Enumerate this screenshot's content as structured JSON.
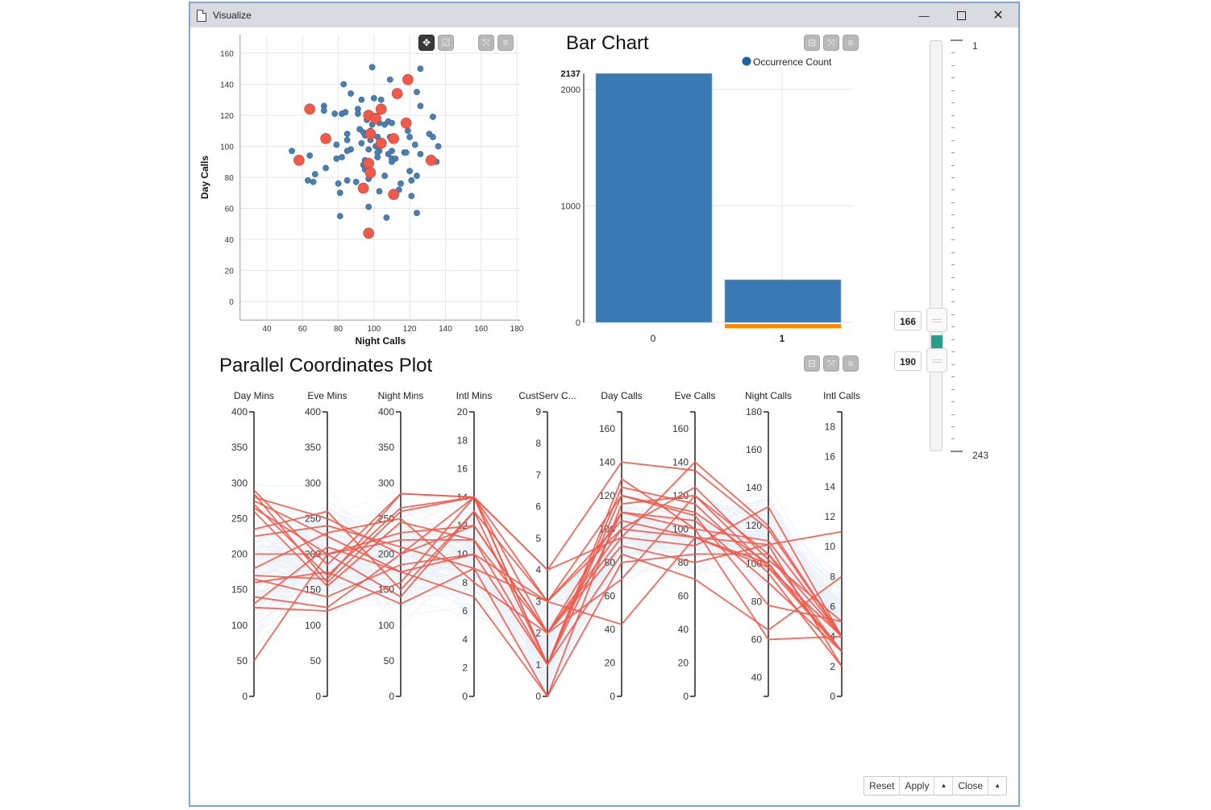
{
  "window": {
    "title": "Visualize",
    "controls": {
      "minimize": "—",
      "maximize": "☐",
      "close": "✕"
    }
  },
  "scatter": {
    "toolbar": [
      {
        "name": "pan-tool-button",
        "icon": "move-icon",
        "glyph": "✥",
        "active": true
      },
      {
        "name": "select-tool-button",
        "icon": "checkbox-icon",
        "glyph": "☑",
        "active": false
      },
      {
        "name": "fullscreen-button",
        "icon": "expand-icon",
        "glyph": "⤧",
        "active": false
      },
      {
        "name": "menu-button",
        "icon": "hamburger-icon",
        "glyph": "≡",
        "active": false
      }
    ]
  },
  "bar": {
    "title": "Bar Chart",
    "legend": "Occurrence Count",
    "max_label": "2137",
    "toolbar": [
      {
        "name": "collapse-button",
        "icon": "minimize-box-icon",
        "glyph": "⊟"
      },
      {
        "name": "fullscreen-button",
        "icon": "expand-icon",
        "glyph": "⤧"
      },
      {
        "name": "menu-button",
        "icon": "hamburger-icon",
        "glyph": "≡"
      }
    ]
  },
  "pcp": {
    "title": "Parallel Coordinates Plot",
    "toolbar": [
      {
        "name": "collapse-button",
        "icon": "minimize-box-icon",
        "glyph": "⊟"
      },
      {
        "name": "fullscreen-button",
        "icon": "expand-icon",
        "glyph": "⤧"
      },
      {
        "name": "menu-button",
        "icon": "hamburger-icon",
        "glyph": "≡"
      }
    ]
  },
  "slider": {
    "min": "1",
    "max": "243",
    "low_value": "166",
    "high_value": "190",
    "range_color": "#2a9d8f"
  },
  "footer": {
    "reset": "Reset",
    "apply": "Apply",
    "apply_menu": "▲",
    "close": "Close",
    "close_menu": "▲"
  },
  "colors": {
    "blue": "#4a7fb0",
    "red": "#f05a4a",
    "bar": "#3a7ab4",
    "highlight": "#ff8c00",
    "pcp_bg": "#c6d9ec"
  },
  "chart_data": [
    {
      "type": "scatter",
      "title": "",
      "xlabel": "Night Calls",
      "ylabel": "Day Calls",
      "xlim": [
        30,
        182
      ],
      "ylim": [
        -8,
        170
      ],
      "xticks": [
        40,
        60,
        80,
        100,
        120,
        140,
        160,
        180
      ],
      "yticks": [
        0,
        20,
        40,
        60,
        80,
        100,
        120,
        140,
        160
      ],
      "grid": true,
      "series": [
        {
          "name": "unselected",
          "color": "#4a7fb0",
          "points": [
            [
              99,
              151
            ],
            [
              126,
              150
            ],
            [
              109,
              143
            ],
            [
              124,
              135
            ],
            [
              83,
              140
            ],
            [
              87,
              134
            ],
            [
              93,
              130
            ],
            [
              100,
              131
            ],
            [
              104,
              130
            ],
            [
              126,
              126
            ],
            [
              72,
              126
            ],
            [
              72,
              123
            ],
            [
              91,
              124
            ],
            [
              91,
              121
            ],
            [
              78,
              121
            ],
            [
              82,
              121
            ],
            [
              84,
              122
            ],
            [
              133,
              119
            ],
            [
              96,
              117
            ],
            [
              103,
              115
            ],
            [
              108,
              116
            ],
            [
              110,
              115
            ],
            [
              106,
              114
            ],
            [
              99,
              114
            ],
            [
              92,
              111
            ],
            [
              94,
              109
            ],
            [
              95,
              107
            ],
            [
              85,
              108
            ],
            [
              98,
              110
            ],
            [
              119,
              110
            ],
            [
              131,
              108
            ],
            [
              133,
              106
            ],
            [
              102,
              106
            ],
            [
              109,
              106
            ],
            [
              120,
              106
            ],
            [
              85,
              104
            ],
            [
              98,
              104
            ],
            [
              79,
              101
            ],
            [
              93,
              102
            ],
            [
              101,
              100
            ],
            [
              123,
              101
            ],
            [
              136,
              100
            ],
            [
              103,
              97
            ],
            [
              110,
              97
            ],
            [
              54,
              97
            ],
            [
              87,
              98
            ],
            [
              85,
              97
            ],
            [
              97,
              98
            ],
            [
              102,
              96
            ],
            [
              108,
              95
            ],
            [
              117,
              96
            ],
            [
              118,
              96
            ],
            [
              126,
              95
            ],
            [
              64,
              94
            ],
            [
              82,
              93
            ],
            [
              79,
              92
            ],
            [
              102,
              93
            ],
            [
              110,
              92
            ],
            [
              112,
              92
            ],
            [
              110,
              90
            ],
            [
              95,
              91
            ],
            [
              94,
              88
            ],
            [
              135,
              90
            ],
            [
              73,
              86
            ],
            [
              95,
              85
            ],
            [
              97,
              84
            ],
            [
              67,
              82
            ],
            [
              106,
              81
            ],
            [
              120,
              84
            ],
            [
              124,
              81
            ],
            [
              63,
              78
            ],
            [
              66,
              77
            ],
            [
              85,
              78
            ],
            [
              90,
              77
            ],
            [
              97,
              79
            ],
            [
              80,
              76
            ],
            [
              115,
              76
            ],
            [
              121,
              78
            ],
            [
              114,
              72
            ],
            [
              103,
              71
            ],
            [
              81,
              70
            ],
            [
              121,
              68
            ],
            [
              97,
              61
            ],
            [
              81,
              55
            ],
            [
              107,
              54
            ],
            [
              124,
              57
            ]
          ]
        },
        {
          "name": "selected",
          "color": "#f05a4a",
          "points": [
            [
              119,
              143
            ],
            [
              113,
              134
            ],
            [
              64,
              124
            ],
            [
              104,
              124
            ],
            [
              97,
              120
            ],
            [
              101,
              118
            ],
            [
              118,
              115
            ],
            [
              73,
              105
            ],
            [
              98,
              108
            ],
            [
              111,
              105
            ],
            [
              104,
              102
            ],
            [
              58,
              91
            ],
            [
              132,
              91
            ],
            [
              97,
              89
            ],
            [
              98,
              83
            ],
            [
              94,
              73
            ],
            [
              111,
              69
            ],
            [
              97,
              44
            ]
          ]
        }
      ]
    },
    {
      "type": "bar",
      "title": "Bar Chart",
      "categories": [
        "0",
        "1"
      ],
      "series": [
        {
          "name": "Occurrence Count",
          "values": [
            2137,
            366
          ]
        }
      ],
      "highlighted_category": "1",
      "yticks": [
        0,
        1000,
        2000
      ],
      "ylim": [
        0,
        2137
      ],
      "legend_position": "top-right",
      "grid": true
    },
    {
      "type": "parallel_coordinates",
      "title": "Parallel Coordinates Plot",
      "axes": [
        {
          "label": "Day Mins",
          "min": 0,
          "max": 400,
          "ticks": [
            0,
            50,
            100,
            150,
            200,
            250,
            300,
            350,
            400
          ]
        },
        {
          "label": "Eve Mins",
          "min": 0,
          "max": 400,
          "ticks": [
            0,
            50,
            100,
            150,
            200,
            250,
            300,
            350,
            400
          ]
        },
        {
          "label": "Night Mins",
          "min": 0,
          "max": 400,
          "ticks": [
            0,
            50,
            100,
            150,
            200,
            250,
            300,
            350,
            400
          ]
        },
        {
          "label": "Intl Mins",
          "min": 0,
          "max": 20,
          "ticks": [
            0,
            2,
            4,
            6,
            8,
            10,
            12,
            14,
            16,
            18,
            20
          ]
        },
        {
          "label": "CustServ C...",
          "min": 0,
          "max": 9,
          "ticks": [
            0,
            1,
            2,
            3,
            4,
            5,
            6,
            7,
            8,
            9
          ]
        },
        {
          "label": "Day Calls",
          "min": 0,
          "max": 170,
          "ticks": [
            0,
            20,
            40,
            60,
            80,
            100,
            120,
            140,
            160
          ]
        },
        {
          "label": "Eve Calls",
          "min": 0,
          "max": 170,
          "ticks": [
            0,
            20,
            40,
            60,
            80,
            100,
            120,
            140,
            160
          ]
        },
        {
          "label": "Night Calls",
          "min": 30,
          "max": 180,
          "ticks": [
            40,
            60,
            80,
            100,
            120,
            140,
            160,
            180
          ]
        },
        {
          "label": "Intl Calls",
          "min": 0,
          "max": 19,
          "ticks": [
            0,
            2,
            4,
            6,
            8,
            10,
            12,
            14,
            16,
            18
          ]
        }
      ],
      "selected_lines": [
        [
          290,
          185,
          285,
          14,
          4,
          140,
          135,
          118,
          4
        ],
        [
          285,
          160,
          260,
          14,
          3,
          120,
          110,
          100,
          3
        ],
        [
          280,
          250,
          200,
          12,
          2,
          110,
          100,
          112,
          4
        ],
        [
          275,
          225,
          175,
          10,
          3,
          105,
          95,
          98,
          3
        ],
        [
          270,
          170,
          265,
          14,
          1,
          125,
          115,
          95,
          2
        ],
        [
          265,
          200,
          220,
          11,
          2,
          100,
          125,
          102,
          5
        ],
        [
          235,
          260,
          150,
          13,
          1,
          130,
          100,
          60,
          4
        ],
        [
          225,
          240,
          210,
          9,
          0,
          115,
          120,
          105,
          3
        ],
        [
          200,
          200,
          230,
          12,
          2,
          90,
          80,
          110,
          2
        ],
        [
          170,
          165,
          285,
          14,
          4,
          95,
          90,
          130,
          4
        ],
        [
          165,
          140,
          185,
          10,
          1,
          85,
          70,
          65,
          8
        ],
        [
          160,
          175,
          130,
          9,
          3,
          100,
          95,
          110,
          11
        ],
        [
          140,
          125,
          200,
          14,
          1,
          110,
          105,
          90,
          3
        ],
        [
          130,
          210,
          175,
          7,
          0,
          80,
          85,
          105,
          4
        ],
        [
          125,
          120,
          160,
          14,
          2,
          95,
          140,
          120,
          4
        ],
        [
          50,
          200,
          140,
          13,
          3,
          43,
          95,
          100,
          3
        ],
        [
          260,
          155,
          245,
          11,
          1,
          120,
          108,
          78,
          5
        ],
        [
          180,
          230,
          250,
          8,
          2,
          70,
          120,
          98,
          4
        ]
      ],
      "background_color": "#c6d9ec",
      "selected_color": "#f05a4a"
    }
  ]
}
